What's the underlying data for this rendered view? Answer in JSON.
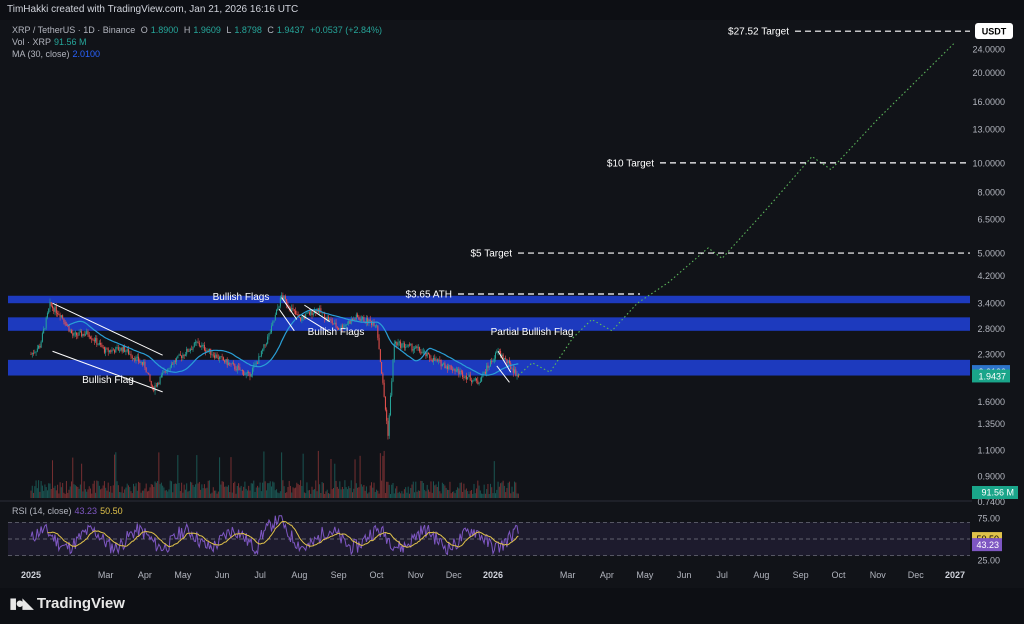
{
  "credit": "TimHakki created with TradingView.com, Jan 21, 2026 16:16 UTC",
  "brand": "TradingView",
  "legend": {
    "symbol": "XRP / TetherUS · 1D · Binance",
    "o_label": "O",
    "o": "1.8900",
    "h_label": "H",
    "h": "1.9609",
    "l_label": "L",
    "l": "1.8798",
    "c_label": "C",
    "c": "1.9437",
    "change": "+0.0537 (+2.84%)",
    "vol_label": "Vol · XRP",
    "vol": "91.56 M",
    "ma_label": "MA (30, close)",
    "ma": "2.0100",
    "rsi_label": "RSI (14, close)",
    "rsi": "43.23",
    "rsi_ma": "50.50"
  },
  "colors": {
    "background": "#0d0f14",
    "zone": "#1f3fd0",
    "ma": "#2a9fd6",
    "candle_up": "#26a69a",
    "candle_down": "#ef5350",
    "projection": "#5cb85c",
    "rsi": "#7e57c2",
    "rsi_ma": "#e0c24a",
    "price_tag": "#1aa58a",
    "ma_tag": "#2d74c9"
  },
  "chart_data": {
    "type": "line",
    "title": "XRP / TetherUS · 1D · Binance",
    "y_scale": "log",
    "currency_label": "USDT",
    "y_ticks": [
      "24.0000",
      "20.0000",
      "16.0000",
      "13.0000",
      "10.0000",
      "8.0000",
      "6.5000",
      "5.0000",
      "4.2000",
      "3.4000",
      "2.8000",
      "2.3000",
      "1.6000",
      "1.3500",
      "1.1000",
      "0.9000",
      "0.7400"
    ],
    "x_ticks": [
      "2025",
      "Mar",
      "Apr",
      "May",
      "Jun",
      "Jul",
      "Aug",
      "Sep",
      "Oct",
      "Nov",
      "Dec",
      "2026",
      "Mar",
      "Apr",
      "May",
      "Jun",
      "Jul",
      "Aug",
      "Sep",
      "Oct",
      "Nov",
      "Dec",
      "2027"
    ],
    "price_labels": {
      "ma": "2.0100",
      "last": "1.9437",
      "volume": "91.56 M"
    },
    "targets": [
      {
        "label": "$27.52 Target",
        "value": 27.52
      },
      {
        "label": "$10 Target",
        "value": 10
      },
      {
        "label": "$5 Target",
        "value": 5
      },
      {
        "label": "$3.65 ATH",
        "value": 3.65
      }
    ],
    "zones": [
      {
        "low": 3.4,
        "high": 3.6
      },
      {
        "low": 2.75,
        "high": 3.05
      },
      {
        "low": 1.95,
        "high": 2.2
      }
    ],
    "annotations": [
      "Bullish Flag",
      "Bullish Flags",
      "Bullish Flags",
      "Partial Bullish Flag"
    ],
    "price_series_approx": [
      [
        "2025-01-01",
        2.3
      ],
      [
        "2025-01-08",
        2.45
      ],
      [
        "2025-01-16",
        3.35
      ],
      [
        "2025-01-25",
        3.1
      ],
      [
        "2025-02-03",
        2.65
      ],
      [
        "2025-02-15",
        2.7
      ],
      [
        "2025-03-01",
        2.35
      ],
      [
        "2025-03-15",
        2.4
      ],
      [
        "2025-04-01",
        2.1
      ],
      [
        "2025-04-07",
        1.75
      ],
      [
        "2025-04-20",
        2.1
      ],
      [
        "2025-05-12",
        2.5
      ],
      [
        "2025-06-01",
        2.2
      ],
      [
        "2025-06-22",
        1.95
      ],
      [
        "2025-07-01",
        2.25
      ],
      [
        "2025-07-10",
        2.8
      ],
      [
        "2025-07-18",
        3.6
      ],
      [
        "2025-08-01",
        3.0
      ],
      [
        "2025-08-15",
        3.25
      ],
      [
        "2025-09-01",
        2.8
      ],
      [
        "2025-09-15",
        3.05
      ],
      [
        "2025-10-01",
        2.9
      ],
      [
        "2025-10-10",
        1.25
      ],
      [
        "2025-10-15",
        2.5
      ],
      [
        "2025-11-01",
        2.4
      ],
      [
        "2025-11-15",
        2.2
      ],
      [
        "2025-12-01",
        2.05
      ],
      [
        "2025-12-20",
        1.85
      ],
      [
        "2026-01-05",
        2.35
      ],
      [
        "2026-01-21",
        1.9437
      ]
    ],
    "projection_approx": [
      [
        "2026-01-21",
        1.95
      ],
      [
        "2026-02-01",
        2.15
      ],
      [
        "2026-02-15",
        2.0
      ],
      [
        "2026-03-05",
        2.6
      ],
      [
        "2026-03-20",
        3.0
      ],
      [
        "2026-04-05",
        2.75
      ],
      [
        "2026-04-25",
        3.4
      ],
      [
        "2026-05-20",
        4.0
      ],
      [
        "2026-06-20",
        5.2
      ],
      [
        "2026-07-01",
        4.8
      ],
      [
        "2026-08-05",
        7.0
      ],
      [
        "2026-09-10",
        10.5
      ],
      [
        "2026-09-25",
        9.5
      ],
      [
        "2026-11-01",
        14.0
      ],
      [
        "2026-12-31",
        25.0
      ]
    ],
    "rsi": {
      "ticks": [
        "75.00",
        "25.00"
      ],
      "levels": [
        70,
        50,
        30
      ],
      "range": [
        20,
        80
      ]
    },
    "grid": false,
    "legend_position": "top-left"
  }
}
